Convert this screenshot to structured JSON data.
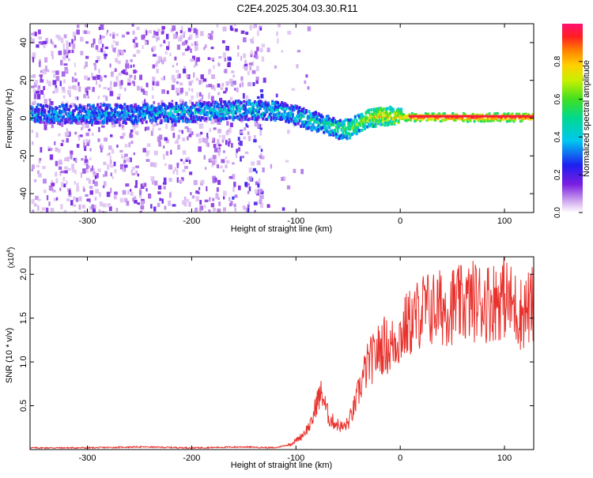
{
  "title": "C2E4.2025.304.03.30.R11",
  "chart_data": [
    {
      "type": "heatmap",
      "xlabel": "Height of straight line (km)",
      "ylabel": "Frequency (Hz)",
      "xlim": [
        -355,
        128
      ],
      "ylim": [
        -50,
        50
      ],
      "xticks": [
        -300,
        -200,
        -100,
        0,
        100
      ],
      "yticks": [
        40,
        20,
        0,
        -20,
        -40
      ],
      "colorbar": {
        "label": "Normalized spectral amplitude",
        "range": [
          0,
          1
        ],
        "ticks": [
          0.0,
          0.2,
          0.4,
          0.6,
          0.8
        ]
      },
      "signal_trace": [
        {
          "x": -350,
          "freq": 3,
          "amp": 0.35
        },
        {
          "x": -300,
          "freq": 3,
          "amp": 0.35
        },
        {
          "x": -250,
          "freq": 3,
          "amp": 0.35
        },
        {
          "x": -200,
          "freq": 4,
          "amp": 0.4
        },
        {
          "x": -150,
          "freq": 5,
          "amp": 0.4
        },
        {
          "x": -130,
          "freq": 5,
          "amp": 0.45
        },
        {
          "x": -110,
          "freq": 4,
          "amp": 0.4
        },
        {
          "x": -90,
          "freq": 0,
          "amp": 0.45
        },
        {
          "x": -75,
          "freq": -2,
          "amp": 0.45
        },
        {
          "x": -60,
          "freq": -5,
          "amp": 0.55
        },
        {
          "x": -50,
          "freq": -5,
          "amp": 0.6
        },
        {
          "x": -40,
          "freq": -2,
          "amp": 0.6
        },
        {
          "x": -30,
          "freq": 1,
          "amp": 0.7
        },
        {
          "x": -20,
          "freq": 2,
          "amp": 0.75
        },
        {
          "x": -10,
          "freq": 2,
          "amp": 0.75
        },
        {
          "x": 0,
          "freq": 1,
          "amp": 0.8
        },
        {
          "x": 10,
          "freq": 1,
          "amp": 0.9
        },
        {
          "x": 50,
          "freq": 1,
          "amp": 0.95
        },
        {
          "x": 100,
          "freq": 1,
          "amp": 0.95
        },
        {
          "x": 128,
          "freq": 1,
          "amp": 0.95
        }
      ]
    },
    {
      "type": "line",
      "xlabel": "Height of straight line (km)",
      "ylabel": "SNR (10 * v/v)",
      "yscale_label": "(x10",
      "yscale_exponent": "4",
      "xlim": [
        -355,
        128
      ],
      "ylim": [
        0,
        2.2
      ],
      "xticks": [
        -300,
        -200,
        -100,
        0,
        100
      ],
      "yticks": [
        0.5,
        1.0,
        1.5,
        2.0
      ],
      "series": [
        {
          "name": "SNR",
          "color": "#e8322d",
          "x": [
            -355,
            -300,
            -250,
            -200,
            -150,
            -120,
            -105,
            -95,
            -85,
            -80,
            -75,
            -72,
            -68,
            -62,
            -55,
            -50,
            -45,
            -40,
            -35,
            -30,
            -25,
            -20,
            -15,
            -10,
            -5,
            0,
            5,
            10,
            15,
            20,
            30,
            40,
            50,
            60,
            70,
            80,
            90,
            100,
            105,
            110,
            115,
            120,
            128
          ],
          "y": [
            0.02,
            0.02,
            0.03,
            0.02,
            0.03,
            0.02,
            0.06,
            0.15,
            0.3,
            0.55,
            0.65,
            0.5,
            0.35,
            0.3,
            0.25,
            0.3,
            0.45,
            0.65,
            0.85,
            1.0,
            1.05,
            1.15,
            1.2,
            1.15,
            1.25,
            1.3,
            1.4,
            1.45,
            1.5,
            1.6,
            1.6,
            1.62,
            1.65,
            1.65,
            1.7,
            1.68,
            1.7,
            1.75,
            1.68,
            1.62,
            1.55,
            1.6,
            1.65
          ]
        }
      ]
    }
  ]
}
